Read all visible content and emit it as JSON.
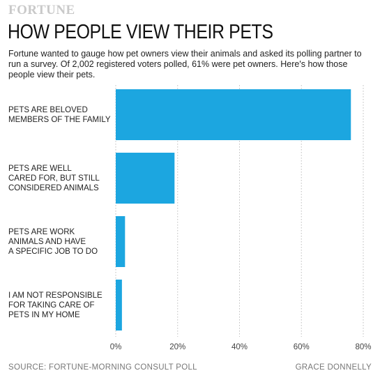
{
  "header": {
    "logo": "FORTUNE",
    "title": "HOW PEOPLE VIEW THEIR PETS",
    "subtitle": "Fortune wanted to gauge how pet owners view their animals and asked its polling partner to run a survey. Of 2,002 registered voters polled, 61% were pet owners. Here's how those people view their pets."
  },
  "footer": {
    "source": "SOURCE: FORTUNE-MORNING CONSULT POLL",
    "credit": "GRACE DONNELLY"
  },
  "chart_data": {
    "type": "bar",
    "orientation": "horizontal",
    "categories": [
      [
        "PETS ARE BELOVED",
        "MEMBERS OF THE FAMILY"
      ],
      [
        "PETS ARE WELL",
        "CARED FOR, BUT STILL",
        "CONSIDERED ANIMALS"
      ],
      [
        "PETS ARE WORK",
        "ANIMALS AND HAVE",
        "A SPECIFIC JOB TO DO"
      ],
      [
        "I AM NOT RESPONSIBLE",
        "FOR TAKING CARE OF",
        "PETS IN MY HOME"
      ]
    ],
    "values": [
      76,
      19,
      3,
      2
    ],
    "xlim": [
      0,
      80
    ],
    "ticks": [
      "0%",
      "20%",
      "40%",
      "60%",
      "80%"
    ],
    "tick_values": [
      0,
      20,
      40,
      60,
      80
    ],
    "grid": true,
    "bar_color": "#1ca6e0"
  }
}
